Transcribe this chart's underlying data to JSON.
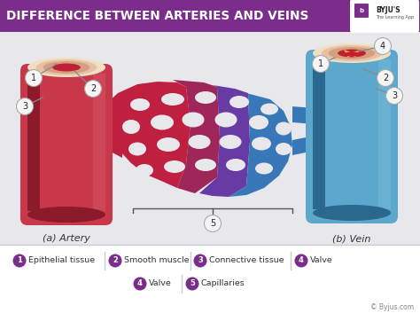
{
  "title": "DIFFERENCE BETWEEN ARTERIES AND VEINS",
  "title_bg": "#7B2D8B",
  "title_color": "#FFFFFF",
  "bg_color": "#E8E8EC",
  "artery_color": "#C8384A",
  "artery_dark": "#8B1A2A",
  "artery_light": "#D96070",
  "vein_color": "#5BA8CC",
  "vein_dark": "#2A6890",
  "vein_light": "#80C0DC",
  "skin_color": "#E8C0A8",
  "skin_dark": "#D4A080",
  "cream_color": "#F0E0C0",
  "artery_label": "(a) Artery",
  "vein_label": "(b) Vein",
  "legend_color": "#7B2D8B",
  "copyright": "© Byjus.com",
  "byju_color": "#888888",
  "callout_bg": "#F5F5F5",
  "callout_border": "#AAAAAA"
}
